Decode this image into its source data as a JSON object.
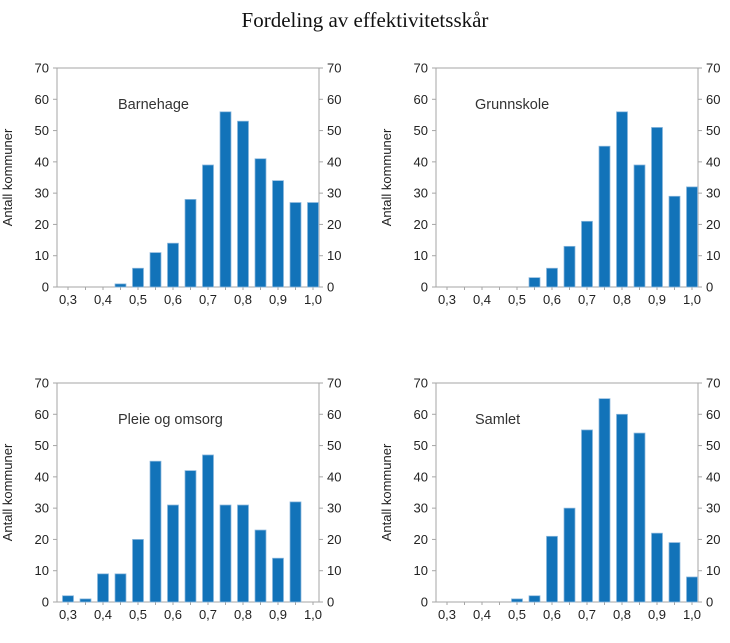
{
  "page": {
    "title": "Fordeling av effektivitetsskår"
  },
  "colors": {
    "bar_fill": "#1273B9",
    "bar_edge": "#8CB8DD",
    "axis": "#A6A6A6",
    "tick_text": "#222222",
    "panel_label_text": "#333333",
    "background": "#FFFFFF"
  },
  "chart_data": [
    {
      "type": "bar",
      "title": "Barnehage",
      "ylabel": "Antall kommuner",
      "bin_width": 0.05,
      "x": [
        0.45,
        0.5,
        0.55,
        0.6,
        0.65,
        0.7,
        0.75,
        0.8,
        0.85,
        0.9,
        0.95,
        1.0
      ],
      "values": [
        1,
        6,
        11,
        14,
        28,
        39,
        56,
        53,
        41,
        34,
        27,
        27
      ],
      "ylim": [
        0,
        70
      ],
      "ytick_values": [
        0,
        10,
        20,
        30,
        40,
        50,
        60,
        70
      ],
      "xtick_values": [
        0.3,
        0.4,
        0.5,
        0.6,
        0.7,
        0.8,
        0.9,
        1.0
      ],
      "xtick_labels": [
        "0,3",
        "0,4",
        "0,5",
        "0,6",
        "0,7",
        "0,8",
        "0,9",
        "1,0"
      ],
      "minor_xtick_step": 0.05,
      "grid": false,
      "legend": "none"
    },
    {
      "type": "bar",
      "title": "Grunnskole",
      "ylabel": "Antall kommuner",
      "bin_width": 0.05,
      "x": [
        0.55,
        0.6,
        0.65,
        0.7,
        0.75,
        0.8,
        0.85,
        0.9,
        0.95,
        1.0
      ],
      "values": [
        3,
        6,
        13,
        21,
        45,
        56,
        39,
        51,
        29,
        32
      ],
      "ylim": [
        0,
        70
      ],
      "ytick_values": [
        0,
        10,
        20,
        30,
        40,
        50,
        60,
        70
      ],
      "xtick_values": [
        0.3,
        0.4,
        0.5,
        0.6,
        0.7,
        0.8,
        0.9,
        1.0
      ],
      "xtick_labels": [
        "0,3",
        "0,4",
        "0,5",
        "0,6",
        "0,7",
        "0,8",
        "0,9",
        "1,0"
      ],
      "minor_xtick_step": 0.05,
      "grid": false,
      "legend": "none"
    },
    {
      "type": "bar",
      "title": "Pleie og omsorg",
      "ylabel": "Antall kommuner",
      "bin_width": 0.05,
      "x": [
        0.3,
        0.35,
        0.4,
        0.45,
        0.5,
        0.55,
        0.6,
        0.65,
        0.7,
        0.75,
        0.8,
        0.85,
        0.9,
        0.95
      ],
      "values": [
        2,
        1,
        9,
        9,
        20,
        45,
        31,
        42,
        47,
        31,
        31,
        23,
        14,
        32
      ],
      "ylim": [
        0,
        70
      ],
      "ytick_values": [
        0,
        10,
        20,
        30,
        40,
        50,
        60,
        70
      ],
      "xtick_values": [
        0.3,
        0.4,
        0.5,
        0.6,
        0.7,
        0.8,
        0.9,
        1.0
      ],
      "xtick_labels": [
        "0,3",
        "0,4",
        "0,5",
        "0,6",
        "0,7",
        "0,8",
        "0,9",
        "1,0"
      ],
      "minor_xtick_step": 0.05,
      "grid": false,
      "legend": "none"
    },
    {
      "type": "bar",
      "title": "Samlet",
      "ylabel": "Antall kommuner",
      "bin_width": 0.05,
      "x": [
        0.5,
        0.55,
        0.6,
        0.65,
        0.7,
        0.75,
        0.8,
        0.85,
        0.9,
        0.95,
        1.0
      ],
      "values": [
        1,
        2,
        21,
        30,
        55,
        65,
        60,
        54,
        22,
        19,
        8
      ],
      "ylim": [
        0,
        70
      ],
      "ytick_values": [
        0,
        10,
        20,
        30,
        40,
        50,
        60,
        70
      ],
      "xtick_values": [
        0.3,
        0.4,
        0.5,
        0.6,
        0.7,
        0.8,
        0.9,
        1.0
      ],
      "xtick_labels": [
        "0,3",
        "0,4",
        "0,5",
        "0,6",
        "0,7",
        "0,8",
        "0,9",
        "1,0"
      ],
      "minor_xtick_step": 0.05,
      "grid": false,
      "legend": "none"
    }
  ]
}
